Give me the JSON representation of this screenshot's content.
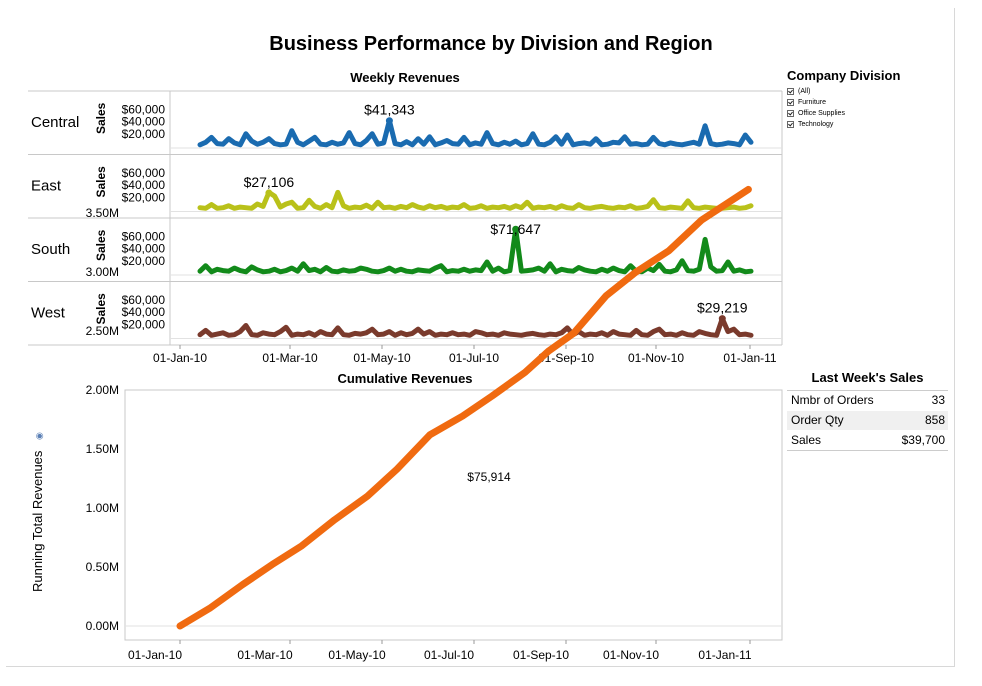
{
  "title": "Business Performance by Division and Region",
  "legend": {
    "title": "Company Division",
    "items": [
      "(All)",
      "Furniture",
      "Office Supplies",
      "Technology"
    ]
  },
  "last_week": {
    "title": "Last Week's Sales",
    "rows": [
      {
        "label": "Nmbr of Orders",
        "value": "33"
      },
      {
        "label": "Order Qty",
        "value": "858"
      },
      {
        "label": "Sales",
        "value": "$39,700"
      }
    ]
  },
  "chart_data": [
    {
      "type": "line",
      "title": "Weekly Revenues",
      "ylabel": "Sales",
      "x_ticks": [
        "01-Jan-10",
        "01-Mar-10",
        "01-May-10",
        "01-Jul-10",
        "01-Sep-10",
        "01-Nov-10",
        "01-Jan-11"
      ],
      "y_ticks": [
        "$60,000",
        "$40,000",
        "$20,000"
      ],
      "ylim": [
        0,
        72000
      ],
      "xlim": [
        "2010-01-01",
        "2011-01-01"
      ],
      "series": [
        {
          "name": "Central",
          "color": "#1a6bb0",
          "values": [
            2000,
            6000,
            14000,
            4000,
            3000,
            12000,
            5000,
            2000,
            20000,
            8000,
            3000,
            6000,
            12000,
            4000,
            2000,
            3000,
            25000,
            6000,
            2000,
            8000,
            14000,
            3000,
            2000,
            6000,
            3000,
            5000,
            22000,
            4000,
            2000,
            9000,
            20000,
            3000,
            5000,
            41343,
            4000,
            2000,
            7000,
            2000,
            12000,
            3000,
            15000,
            2000,
            5000,
            9000,
            4000,
            3000,
            14000,
            2000,
            5000,
            3000,
            22000,
            4000,
            2000,
            6000,
            3000,
            8000,
            2000,
            4000,
            20000,
            3000,
            2000,
            6000,
            15000,
            3000,
            18000,
            2000,
            4000,
            5000,
            3000,
            12000,
            2000,
            3000,
            6000,
            5000,
            15000,
            3000,
            4000,
            2000,
            3000,
            14000,
            4000,
            2000,
            5000,
            3000,
            2000,
            4000,
            6000,
            3000,
            33000,
            4000,
            2000,
            3000,
            5000,
            4000,
            2000,
            18000,
            6000
          ]
        },
        {
          "name": "East",
          "color": "#b9c11a",
          "values": [
            3000,
            2000,
            8000,
            2000,
            3000,
            6000,
            2000,
            4000,
            3000,
            2000,
            9000,
            5000,
            28000,
            22000,
            4000,
            9000,
            12000,
            2000,
            3000,
            15000,
            5000,
            2000,
            8000,
            3000,
            28000,
            6000,
            2000,
            4000,
            3000,
            7000,
            2000,
            12000,
            3000,
            4000,
            2000,
            5000,
            3000,
            8000,
            4000,
            2000,
            6000,
            3000,
            5000,
            2000,
            4000,
            3000,
            8000,
            2000,
            3000,
            6000,
            2000,
            4000,
            3000,
            5000,
            2000,
            6000,
            3000,
            12000,
            2000,
            4000,
            3000,
            5000,
            2000,
            6000,
            3000,
            2000,
            8000,
            3000,
            2000,
            4000,
            5000,
            3000,
            2000,
            4000,
            3000,
            6000,
            2000,
            3000,
            5000,
            16000,
            3000,
            2000,
            4000,
            3000,
            2000,
            14000,
            3000,
            2000,
            4000,
            3000,
            2000,
            2000,
            3000,
            4000,
            2000,
            3000,
            6000
          ]
        },
        {
          "name": "South",
          "color": "#128a1a",
          "values": [
            3000,
            12000,
            2000,
            6000,
            4000,
            3000,
            8000,
            4000,
            2000,
            10000,
            5000,
            2000,
            3000,
            6000,
            2000,
            4000,
            8000,
            3000,
            15000,
            4000,
            6000,
            2000,
            9000,
            3000,
            2000,
            5000,
            3000,
            4000,
            8000,
            6000,
            3000,
            2000,
            4000,
            8000,
            3000,
            6000,
            3000,
            2000,
            5000,
            4000,
            3000,
            8000,
            12000,
            2000,
            4000,
            3000,
            6000,
            3000,
            5000,
            4000,
            18000,
            3000,
            8000,
            2000,
            4000,
            71647,
            3000,
            4000,
            5000,
            8000,
            3000,
            15000,
            2000,
            6000,
            4000,
            3000,
            9000,
            5000,
            3000,
            2000,
            6000,
            3000,
            8000,
            4000,
            2000,
            12000,
            3000,
            2000,
            8000,
            4000,
            14000,
            3000,
            2000,
            5000,
            20000,
            4000,
            3000,
            6000,
            55000,
            10000,
            3000,
            4000,
            18000,
            3000,
            5000,
            2000,
            3000
          ]
        },
        {
          "name": "West",
          "color": "#7a3a2c",
          "values": [
            3000,
            10000,
            2000,
            4000,
            6000,
            2000,
            3000,
            8000,
            18000,
            3000,
            2000,
            6000,
            4000,
            3000,
            8000,
            15000,
            2000,
            4000,
            3000,
            6000,
            2000,
            8000,
            4000,
            3000,
            14000,
            3000,
            2000,
            5000,
            4000,
            6000,
            12000,
            3000,
            4000,
            8000,
            2000,
            6000,
            3000,
            5000,
            12000,
            4000,
            8000,
            2000,
            4000,
            3000,
            6000,
            3000,
            4000,
            2000,
            8000,
            6000,
            3000,
            4000,
            2000,
            6000,
            4000,
            3000,
            2000,
            4000,
            5000,
            3000,
            2000,
            4000,
            3000,
            6000,
            14000,
            3000,
            8000,
            2000,
            4000,
            3000,
            6000,
            2000,
            8000,
            4000,
            3000,
            2000,
            10000,
            3000,
            2000,
            8000,
            12000,
            3000,
            4000,
            2000,
            6000,
            3000,
            2000,
            8000,
            5000,
            3000,
            2000,
            29219,
            8000,
            12000,
            3000,
            4000,
            2000
          ]
        }
      ],
      "annotations": [
        {
          "series": "Central",
          "label": "$41,343",
          "value": 41343
        },
        {
          "series": "East",
          "label": "$27,106",
          "value": 27106
        },
        {
          "series": "South",
          "label": "$71,647",
          "value": 71647
        },
        {
          "series": "West",
          "label": "$29,219",
          "value": 29219
        }
      ]
    },
    {
      "type": "line",
      "title": "Cumulative Revenues",
      "ylabel": "Running Total Revenues",
      "x_ticks": [
        "01-Jan-10",
        "01-Mar-10",
        "01-May-10",
        "01-Jul-10",
        "01-Sep-10",
        "01-Nov-10",
        "01-Jan-11"
      ],
      "y_ticks": [
        "3.50M",
        "3.00M",
        "2.50M",
        "2.00M",
        "1.50M",
        "1.00M",
        "0.50M",
        "0.00M"
      ],
      "ylim": [
        0,
        3700000
      ],
      "xlim": [
        "2010-01-01",
        "2011-01-01"
      ],
      "annotation": "$75,914",
      "series": [
        {
          "color": "#f06a10",
          "points": [
            [
              "2010-01-01",
              0
            ],
            [
              "2010-01-20",
              150000
            ],
            [
              "2010-02-10",
              350000
            ],
            [
              "2010-03-01",
              520000
            ],
            [
              "2010-03-20",
              680000
            ],
            [
              "2010-04-10",
              900000
            ],
            [
              "2010-05-01",
              1100000
            ],
            [
              "2010-05-20",
              1330000
            ],
            [
              "2010-06-10",
              1620000
            ],
            [
              "2010-07-01",
              1780000
            ],
            [
              "2010-07-20",
              1950000
            ],
            [
              "2010-08-10",
              2150000
            ],
            [
              "2010-08-25",
              2330000
            ],
            [
              "2010-09-10",
              2480000
            ],
            [
              "2010-10-01",
              2800000
            ],
            [
              "2010-10-20",
              3000000
            ],
            [
              "2010-11-10",
              3180000
            ],
            [
              "2010-12-01",
              3440000
            ],
            [
              "2010-12-31",
              3700000
            ]
          ]
        }
      ]
    }
  ]
}
